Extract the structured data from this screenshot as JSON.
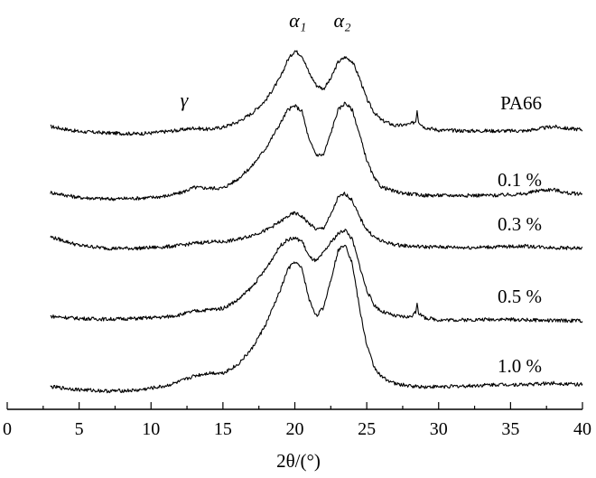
{
  "chart_data": {
    "type": "line",
    "xlabel": "2θ/(°)",
    "xlim": [
      0,
      40
    ],
    "x_ticks": [
      0,
      5,
      10,
      15,
      20,
      25,
      30,
      35,
      40
    ],
    "y_axis_shown": false,
    "grid": false,
    "legend": "inline labels at right of each trace",
    "annotations": [
      {
        "text": "γ",
        "x": 12.3
      },
      {
        "text": "α₁",
        "x": 20.2
      },
      {
        "text": "α₂",
        "x": 23.3
      }
    ],
    "series": [
      {
        "name": "PA66",
        "x": [
          3,
          5,
          7,
          9,
          10,
          11,
          12,
          13,
          14,
          15,
          16,
          17,
          18,
          19,
          19.5,
          20,
          20.5,
          21,
          21.5,
          22,
          22.5,
          23,
          23.5,
          24,
          24.5,
          25,
          25.5,
          26,
          27,
          28,
          28.4,
          28.5,
          28.6,
          29,
          30,
          32,
          34,
          36,
          37,
          38,
          39,
          40
        ],
        "y": [
          0.0,
          -0.07,
          -0.09,
          -0.1,
          -0.09,
          -0.07,
          -0.05,
          -0.02,
          -0.04,
          -0.01,
          0.06,
          0.18,
          0.37,
          0.68,
          0.92,
          1.05,
          0.98,
          0.74,
          0.57,
          0.52,
          0.66,
          0.89,
          0.96,
          0.9,
          0.67,
          0.38,
          0.2,
          0.09,
          0.01,
          0.03,
          0.07,
          0.23,
          0.07,
          -0.01,
          -0.05,
          -0.06,
          -0.06,
          -0.06,
          -0.03,
          0.0,
          -0.03,
          -0.04
        ]
      },
      {
        "name": "0.1 %",
        "x": [
          3,
          5,
          7,
          9,
          10,
          11,
          12,
          13,
          14,
          15,
          16,
          17,
          18,
          19,
          19.5,
          20,
          20.5,
          21,
          21.5,
          22,
          22.5,
          23,
          23.5,
          24,
          24.5,
          25,
          25.5,
          26,
          27,
          28,
          29,
          30,
          32,
          34,
          36,
          37,
          38,
          39,
          40
        ],
        "y": [
          0.0,
          -0.07,
          -0.09,
          -0.08,
          -0.07,
          -0.05,
          -0.01,
          0.07,
          0.06,
          0.06,
          0.18,
          0.36,
          0.62,
          0.96,
          1.14,
          1.2,
          1.12,
          0.72,
          0.52,
          0.52,
          0.82,
          1.14,
          1.24,
          1.14,
          0.8,
          0.45,
          0.2,
          0.08,
          0.01,
          -0.02,
          -0.04,
          -0.04,
          -0.04,
          -0.04,
          -0.02,
          0.03,
          0.04,
          -0.01,
          -0.02
        ]
      },
      {
        "name": "0.3 %",
        "x": [
          3,
          5,
          7,
          9,
          10,
          11,
          12,
          13,
          14,
          15,
          16,
          17,
          18,
          19,
          19.5,
          20,
          20.5,
          21,
          21.5,
          22,
          22.5,
          23,
          23.5,
          24,
          24.5,
          25,
          25.5,
          26,
          27,
          28,
          29,
          30,
          32,
          34,
          36,
          38,
          40
        ],
        "y": [
          0.0,
          -0.12,
          -0.16,
          -0.16,
          -0.15,
          -0.14,
          -0.12,
          -0.09,
          -0.07,
          -0.07,
          -0.04,
          0.02,
          0.09,
          0.21,
          0.28,
          0.33,
          0.28,
          0.18,
          0.1,
          0.12,
          0.3,
          0.54,
          0.6,
          0.5,
          0.27,
          0.1,
          0.0,
          -0.06,
          -0.11,
          -0.13,
          -0.14,
          -0.14,
          -0.15,
          -0.14,
          -0.13,
          -0.15,
          -0.16
        ]
      },
      {
        "name": "0.5 %",
        "x": [
          3,
          5,
          7,
          9,
          10,
          11,
          12,
          13,
          14,
          15,
          16,
          17,
          18,
          19,
          19.5,
          20,
          20.5,
          21,
          21.5,
          22,
          22.5,
          23,
          23.5,
          24,
          24.5,
          25,
          25.5,
          26,
          27,
          28,
          28.4,
          28.5,
          28.6,
          29,
          30,
          32,
          34,
          36,
          38,
          40
        ],
        "y": [
          0.0,
          -0.03,
          -0.04,
          -0.03,
          -0.02,
          -0.01,
          0.02,
          0.07,
          0.09,
          0.11,
          0.22,
          0.4,
          0.66,
          0.98,
          1.06,
          1.08,
          1.04,
          0.82,
          0.76,
          0.88,
          1.02,
          1.14,
          1.2,
          1.06,
          0.7,
          0.36,
          0.16,
          0.07,
          0.0,
          -0.01,
          0.05,
          0.2,
          0.05,
          -0.02,
          -0.05,
          -0.05,
          -0.04,
          -0.05,
          -0.06,
          -0.06
        ]
      },
      {
        "name": "1.0 %",
        "x": [
          3,
          5,
          7,
          9,
          10,
          11,
          12,
          13,
          14,
          15,
          16,
          17,
          18,
          19,
          19.5,
          20,
          20.5,
          21,
          21.5,
          22,
          22.5,
          23,
          23.5,
          24,
          24.5,
          25,
          25.5,
          26,
          27,
          28,
          29,
          30,
          32,
          34,
          36,
          38,
          40
        ],
        "y": [
          0.0,
          -0.04,
          -0.06,
          -0.05,
          -0.02,
          0.01,
          0.07,
          0.15,
          0.19,
          0.19,
          0.3,
          0.52,
          0.87,
          1.34,
          1.62,
          1.73,
          1.63,
          1.2,
          0.98,
          1.1,
          1.48,
          1.88,
          1.98,
          1.7,
          1.08,
          0.58,
          0.28,
          0.14,
          0.04,
          0.01,
          0.0,
          0.0,
          0.01,
          0.03,
          0.03,
          0.05,
          0.03
        ]
      }
    ]
  }
}
